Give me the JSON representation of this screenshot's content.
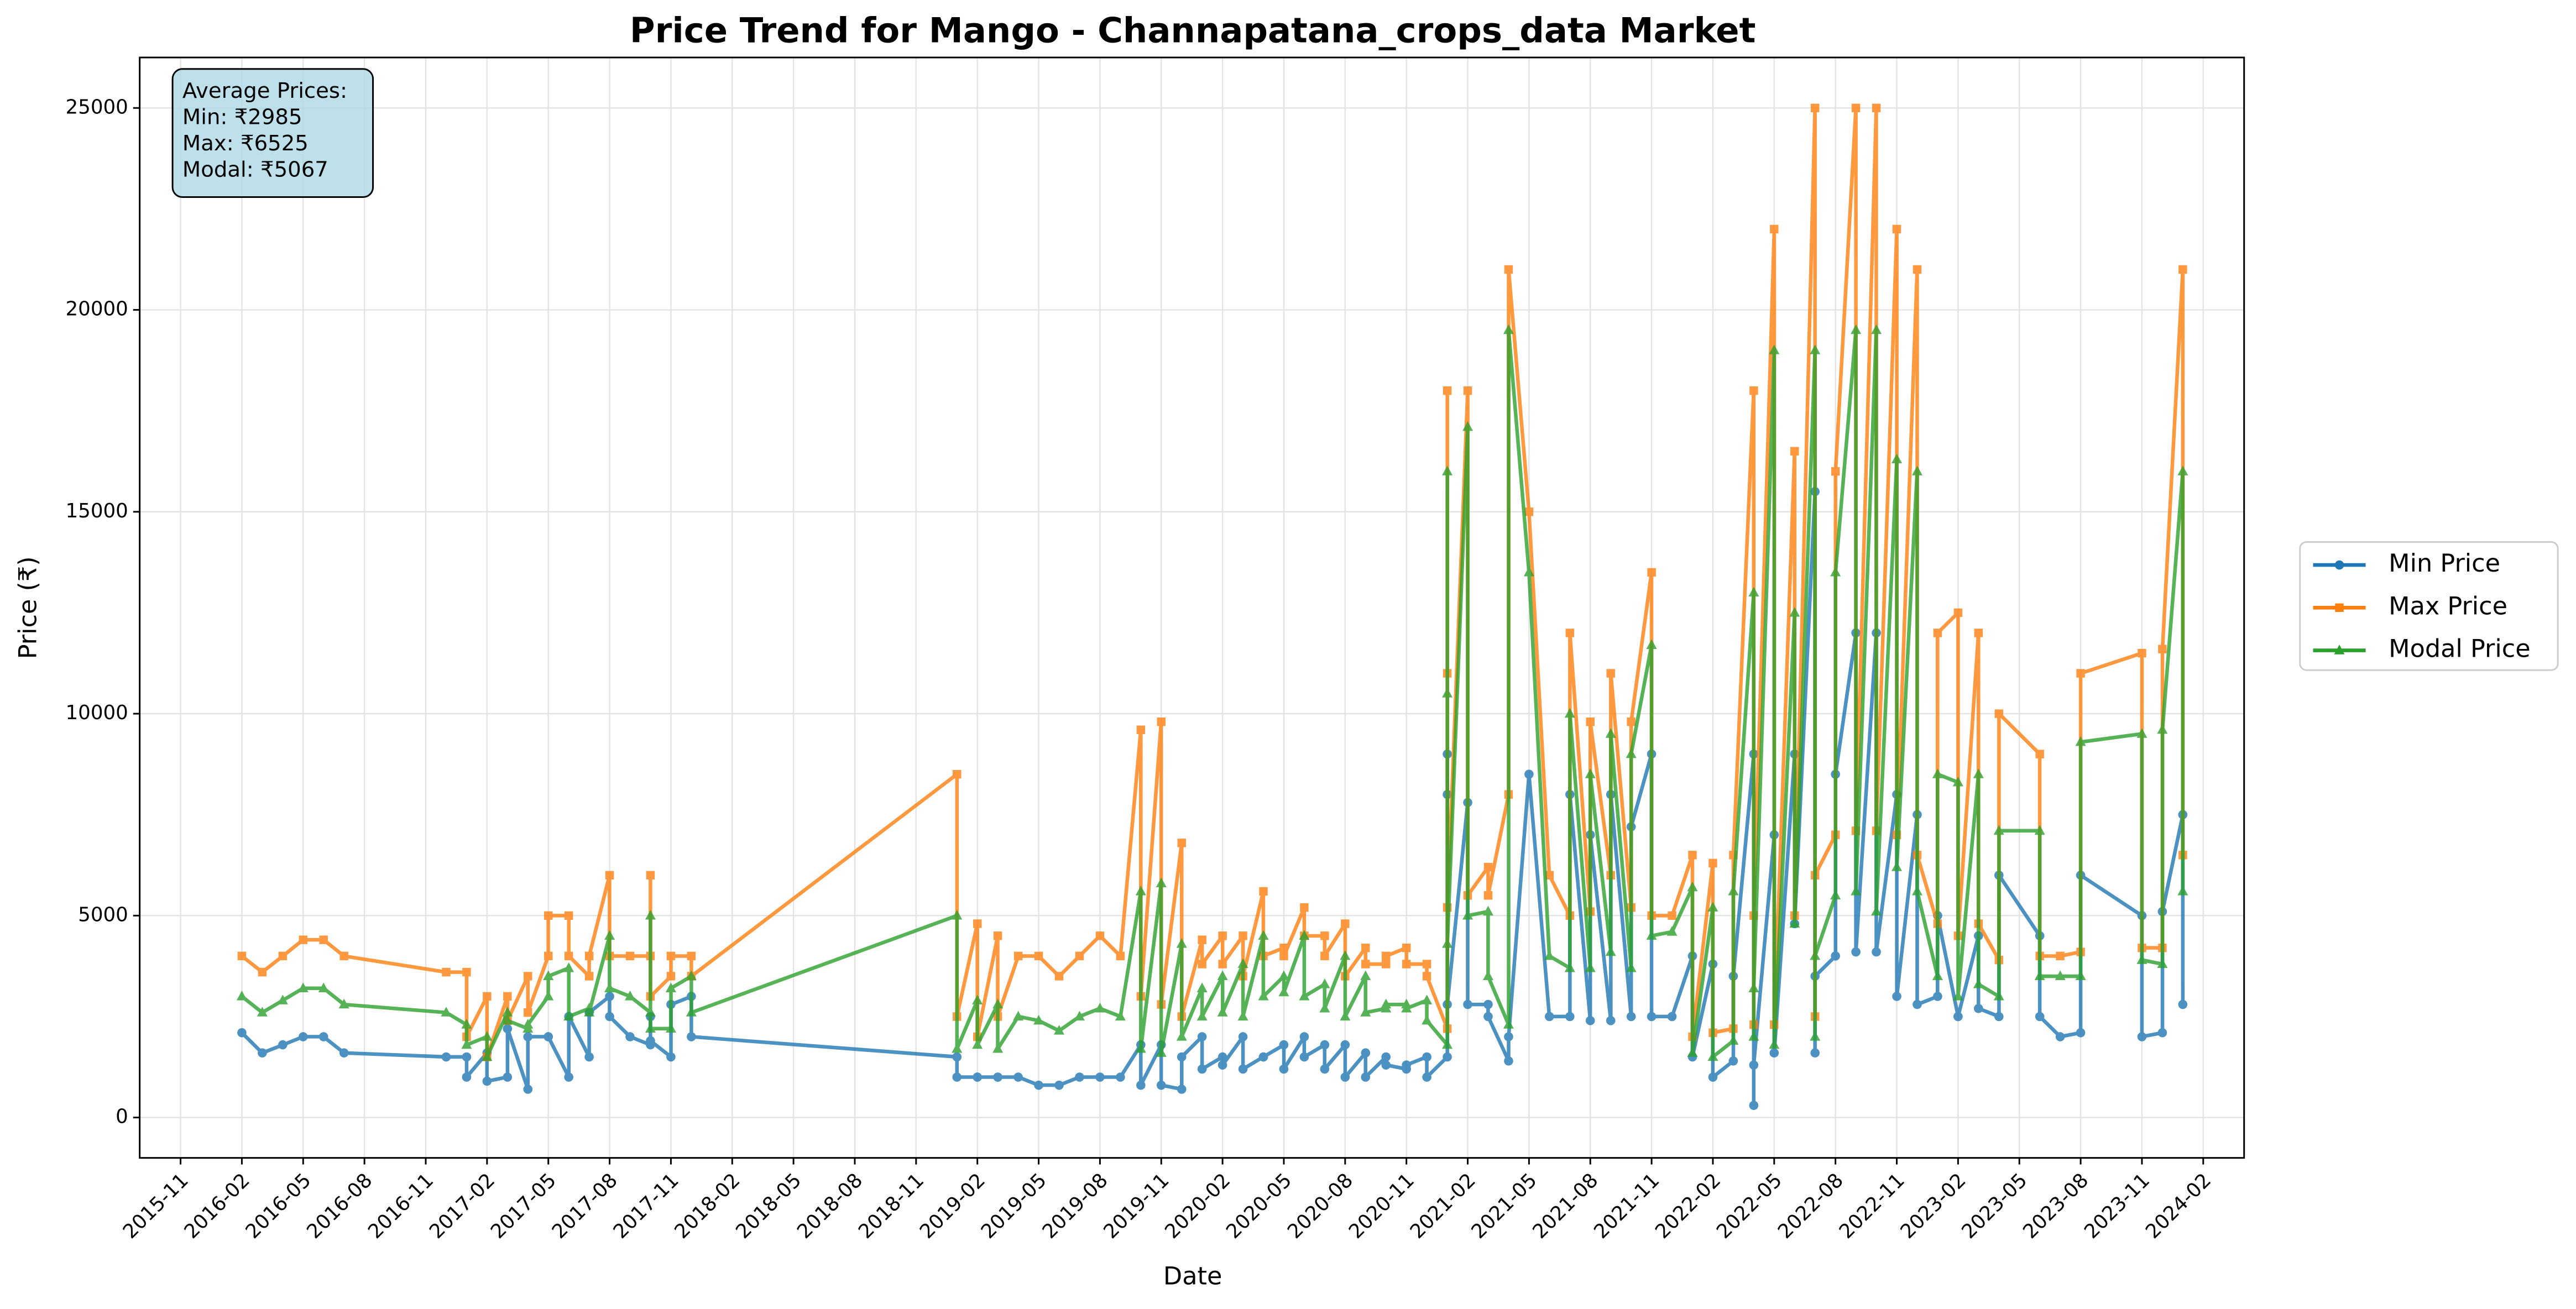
{
  "chart_data": {
    "type": "line",
    "title": "Price Trend for Mango - Channapatana_crops_data Market",
    "x_label": "Date",
    "y_label": "Price (₹)",
    "annotation": [
      "Average Prices:",
      "Min: ₹2985",
      "Max: ₹6525",
      "Modal: ₹5067"
    ],
    "x": [
      "2016-02",
      "2016-03",
      "2016-04",
      "2016-05",
      "2016-06",
      "2016-07",
      "2016-12",
      "2017-01",
      "2017-01",
      "2017-02",
      "2017-02",
      "2017-03",
      "2017-03",
      "2017-04",
      "2017-04",
      "2017-05",
      "2017-05",
      "2017-06",
      "2017-06",
      "2017-07",
      "2017-07",
      "2017-08",
      "2017-08",
      "2017-09",
      "2017-10",
      "2017-10",
      "2017-10",
      "2017-11",
      "2017-11",
      "2017-12",
      "2017-12",
      "2019-01",
      "2019-01",
      "2019-02",
      "2019-02",
      "2019-03",
      "2019-03",
      "2019-04",
      "2019-05",
      "2019-06",
      "2019-07",
      "2019-08",
      "2019-09",
      "2019-10",
      "2019-10",
      "2019-11",
      "2019-11",
      "2019-12",
      "2019-12",
      "2020-01",
      "2020-01",
      "2020-02",
      "2020-02",
      "2020-03",
      "2020-03",
      "2020-04",
      "2020-04",
      "2020-05",
      "2020-05",
      "2020-06",
      "2020-06",
      "2020-07",
      "2020-07",
      "2020-08",
      "2020-08",
      "2020-09",
      "2020-09",
      "2020-10",
      "2020-10",
      "2020-11",
      "2020-11",
      "2020-12",
      "2020-12",
      "2021-01",
      "2021-01",
      "2021-01",
      "2021-01",
      "2021-02",
      "2021-02",
      "2021-03",
      "2021-03",
      "2021-04",
      "2021-04",
      "2021-05",
      "2021-06",
      "2021-07",
      "2021-07",
      "2021-08",
      "2021-08",
      "2021-09",
      "2021-09",
      "2021-10",
      "2021-10",
      "2021-11",
      "2021-11",
      "2021-12",
      "2022-01",
      "2022-01",
      "2022-02",
      "2022-02",
      "2022-03",
      "2022-03",
      "2022-04",
      "2022-04",
      "2022-04",
      "2022-05",
      "2022-05",
      "2022-06",
      "2022-06",
      "2022-07",
      "2022-07",
      "2022-07",
      "2022-08",
      "2022-08",
      "2022-09",
      "2022-09",
      "2022-10",
      "2022-10",
      "2022-11",
      "2022-11",
      "2022-12",
      "2022-12",
      "2023-01",
      "2023-01",
      "2023-02",
      "2023-02",
      "2023-03",
      "2023-03",
      "2023-04",
      "2023-04",
      "2023-06",
      "2023-06",
      "2023-07",
      "2023-08",
      "2023-08",
      "2023-11",
      "2023-11",
      "2023-12",
      "2023-12",
      "2024-01",
      "2024-01"
    ],
    "series": [
      {
        "name": "Min Price",
        "color": "#1f77b4",
        "marker": "circle",
        "values": [
          2100,
          1600,
          1800,
          2000,
          2000,
          1600,
          1500,
          1500,
          1000,
          1600,
          900,
          1000,
          2200,
          700,
          2000,
          2000,
          2000,
          1000,
          2500,
          1500,
          2600,
          3000,
          2500,
          2000,
          1800,
          2500,
          1900,
          1500,
          2800,
          3000,
          2000,
          1500,
          1000,
          1000,
          1000,
          1000,
          1000,
          1000,
          800,
          800,
          1000,
          1000,
          1000,
          1800,
          800,
          1800,
          800,
          700,
          1500,
          2000,
          1200,
          1500,
          1300,
          2000,
          1200,
          1500,
          1500,
          1800,
          1200,
          2000,
          1500,
          1800,
          1200,
          1800,
          1000,
          1600,
          1000,
          1500,
          1300,
          1200,
          1300,
          1500,
          1000,
          1500,
          8000,
          9000,
          2800,
          7800,
          2800,
          2800,
          2500,
          1400,
          2000,
          8500,
          2500,
          2500,
          8000,
          2400,
          7000,
          2400,
          8000,
          2500,
          7200,
          9000,
          2500,
          2500,
          4000,
          1500,
          3800,
          1000,
          1400,
          3500,
          9000,
          300,
          1300,
          7000,
          1600,
          9000,
          4800,
          15500,
          1600,
          3500,
          4000,
          8500,
          12000,
          4100,
          12000,
          4100,
          8000,
          3000,
          7500,
          2800,
          3000,
          5000,
          2500,
          2500,
          4500,
          2700,
          2500,
          6000,
          4500,
          2500,
          2000,
          2100,
          6000,
          5000,
          2000,
          2100,
          5100,
          7500,
          2800
        ]
      },
      {
        "name": "Max Price",
        "color": "#ff7f0e",
        "marker": "square",
        "values": [
          4000,
          3600,
          4000,
          4400,
          4400,
          4000,
          3600,
          3600,
          2000,
          3000,
          1500,
          3000,
          2400,
          3500,
          2600,
          4000,
          5000,
          5000,
          4000,
          3500,
          4000,
          6000,
          4000,
          4000,
          4000,
          6000,
          3000,
          3500,
          4000,
          4000,
          3500,
          8500,
          2500,
          4800,
          2000,
          4500,
          2500,
          4000,
          4000,
          3500,
          4000,
          4500,
          4000,
          9600,
          3000,
          9800,
          2800,
          6800,
          2500,
          4400,
          3800,
          4500,
          3800,
          4500,
          3500,
          5600,
          4000,
          4200,
          4000,
          5200,
          4500,
          4500,
          4000,
          4800,
          3500,
          4200,
          3800,
          3800,
          4000,
          4200,
          3800,
          3800,
          3500,
          2200,
          11000,
          18000,
          5200,
          18000,
          5500,
          6200,
          5500,
          8000,
          21000,
          15000,
          6000,
          5000,
          12000,
          5100,
          9800,
          6000,
          11000,
          5200,
          9800,
          13500,
          5000,
          5000,
          6500,
          2000,
          6300,
          2100,
          2200,
          6500,
          18000,
          2300,
          5000,
          22000,
          2300,
          16500,
          5000,
          25000,
          2500,
          6000,
          7000,
          16000,
          25000,
          7100,
          25000,
          7100,
          22000,
          7000,
          21000,
          6500,
          4800,
          12000,
          12500,
          4500,
          12000,
          4800,
          3900,
          10000,
          9000,
          4000,
          4000,
          4100,
          11000,
          11500,
          4200,
          4200,
          11600,
          21000,
          6500
        ]
      },
      {
        "name": "Modal Price",
        "color": "#2ca02c",
        "marker": "triangle",
        "values": [
          3000,
          2600,
          2900,
          3200,
          3200,
          2800,
          2600,
          2300,
          1800,
          2000,
          1500,
          2600,
          2400,
          2200,
          2300,
          3000,
          3500,
          3700,
          2500,
          2700,
          2600,
          4500,
          3200,
          3000,
          2600,
          5000,
          2200,
          2200,
          3200,
          3500,
          2600,
          5000,
          1700,
          2900,
          1800,
          2800,
          1700,
          2500,
          2400,
          2150,
          2500,
          2700,
          2500,
          5600,
          1700,
          5800,
          1600,
          4300,
          2000,
          3200,
          2500,
          3500,
          2600,
          3800,
          2500,
          4500,
          3000,
          3500,
          3100,
          4500,
          3000,
          3300,
          2700,
          4000,
          2500,
          3500,
          2600,
          2700,
          2800,
          2800,
          2700,
          2900,
          2400,
          1800,
          10500,
          16000,
          4300,
          17100,
          5000,
          5100,
          3500,
          2300,
          19500,
          13500,
          4000,
          3700,
          10000,
          3700,
          8500,
          4100,
          9500,
          3700,
          9000,
          11700,
          4500,
          4600,
          5700,
          1600,
          5200,
          1500,
          1900,
          5600,
          13000,
          2000,
          3200,
          19000,
          1800,
          12500,
          4800,
          19000,
          2000,
          4000,
          5500,
          13500,
          19500,
          5600,
          19500,
          5100,
          16300,
          6200,
          16000,
          5600,
          3500,
          8500,
          8300,
          3000,
          8500,
          3300,
          3000,
          7100,
          7100,
          3500,
          3500,
          3500,
          9300,
          9500,
          3900,
          3800,
          9600,
          16000,
          5600
        ]
      }
    ],
    "xlim": [
      "2015-09",
      "2024-04"
    ],
    "xticks": [
      "2015-11",
      "2016-02",
      "2016-05",
      "2016-08",
      "2016-11",
      "2017-02",
      "2017-05",
      "2017-08",
      "2017-11",
      "2018-02",
      "2018-05",
      "2018-08",
      "2018-11",
      "2019-02",
      "2019-05",
      "2019-08",
      "2019-11",
      "2020-02",
      "2020-05",
      "2020-08",
      "2020-11",
      "2021-02",
      "2021-05",
      "2021-08",
      "2021-11",
      "2022-02",
      "2022-05",
      "2022-08",
      "2022-11",
      "2023-02",
      "2023-05",
      "2023-08",
      "2023-11",
      "2024-02"
    ],
    "ylim": [
      -1000,
      26250
    ],
    "yticks": [
      0,
      5000,
      10000,
      15000,
      20000,
      25000
    ],
    "grid": true,
    "legend": "outside right"
  }
}
